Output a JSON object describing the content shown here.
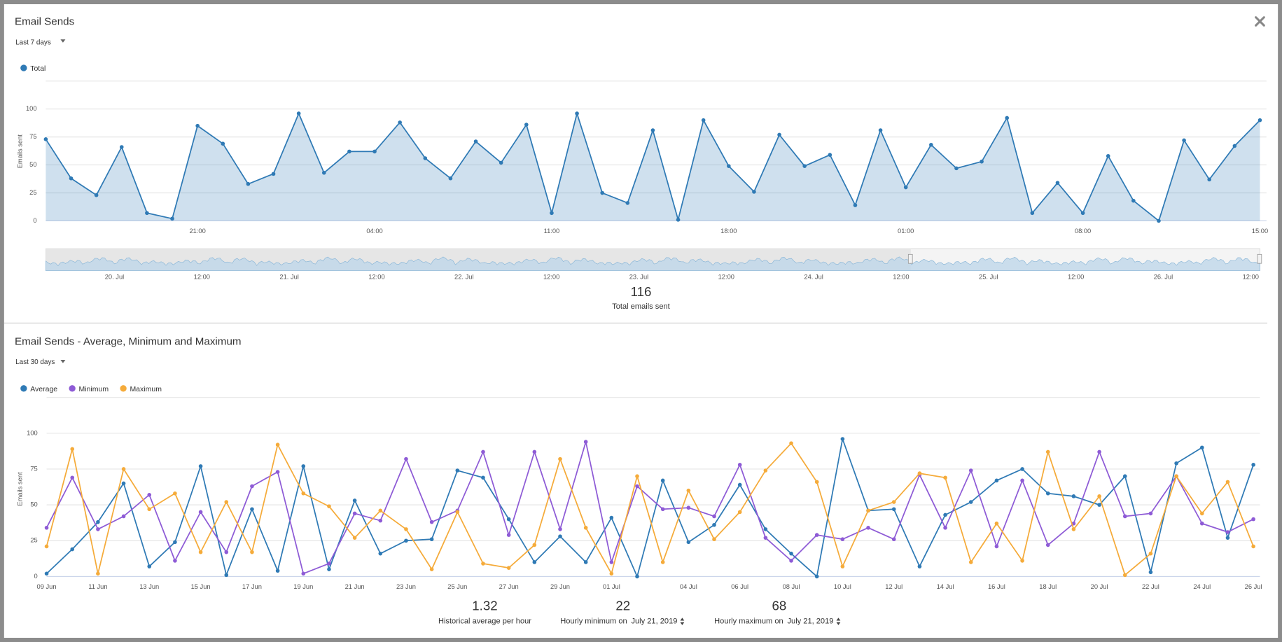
{
  "chart_data": [
    {
      "type": "line",
      "title": "Email Sends",
      "range": "Last 7 days",
      "y_label": "Emails sent",
      "area": true,
      "categories": [
        null,
        null,
        null,
        null,
        null,
        null,
        "21:00",
        null,
        null,
        null,
        null,
        null,
        null,
        "04:00",
        null,
        null,
        null,
        null,
        null,
        null,
        "11:00",
        null,
        null,
        null,
        null,
        null,
        null,
        "18:00",
        null,
        null,
        null,
        null,
        null,
        null,
        "01:00",
        null,
        null,
        null,
        null,
        null,
        null,
        "08:00",
        null,
        null,
        null,
        null,
        null,
        null,
        "15:00"
      ],
      "series": [
        {
          "name": "Total",
          "color": "#2f7ab5",
          "values": [
            73,
            38,
            23,
            66,
            7,
            2,
            85,
            69,
            33,
            42,
            96,
            43,
            62,
            62,
            88,
            56,
            38,
            71,
            52,
            86,
            7,
            96,
            25,
            16,
            81,
            1,
            90,
            49,
            26,
            77,
            49,
            59,
            14,
            81,
            30,
            68,
            47,
            53,
            92,
            7,
            34,
            7,
            58,
            18,
            0,
            72,
            37,
            67,
            90
          ]
        }
      ],
      "ylim": [
        0,
        125
      ],
      "yticks": [
        0,
        25,
        50,
        75,
        100
      ],
      "grid": true,
      "navigator": {
        "labels": [
          "20. Jul",
          "12:00",
          "21. Jul",
          "12:00",
          "22. Jul",
          "12:00",
          "23. Jul",
          "12:00",
          "24. Jul",
          "12:00",
          "25. Jul",
          "12:00",
          "26. Jul",
          "12:00"
        ]
      },
      "summary": [
        {
          "value": 116,
          "label": "Total emails sent"
        }
      ]
    },
    {
      "type": "line",
      "title": "Email Sends - Average, Minimum and Maximum",
      "range": "Last 30 days",
      "y_label": "Emails sent",
      "area": false,
      "categories": [
        "09 Jun",
        null,
        "11 Jun",
        null,
        "13 Jun",
        null,
        "15 Jun",
        null,
        "17 Jun",
        null,
        "19 Jun",
        null,
        "21 Jun",
        null,
        "23 Jun",
        null,
        "25 Jun",
        null,
        "27 Jun",
        null,
        "29 Jun",
        null,
        "01 Jul",
        null,
        null,
        "04 Jul",
        null,
        "06 Jul",
        null,
        "08 Jul",
        null,
        "10 Jul",
        null,
        "12 Jul",
        null,
        "14 Jul",
        null,
        "16 Jul",
        null,
        "18 Jul",
        null,
        "20 Jul",
        null,
        "22 Jul",
        null,
        "24 Jul",
        null,
        "26 Jul"
      ],
      "series": [
        {
          "name": "Average",
          "color": "#2f7ab5",
          "values": [
            2,
            19,
            38,
            65,
            7,
            24,
            77,
            1,
            47,
            4,
            77,
            5,
            53,
            16,
            25,
            26,
            74,
            69,
            40,
            10,
            28,
            10,
            41,
            0,
            67,
            24,
            36,
            64,
            33,
            16,
            0,
            96,
            46,
            47,
            7,
            43,
            52,
            67,
            75,
            58,
            56,
            50,
            70,
            3,
            79,
            90,
            27,
            78
          ]
        },
        {
          "name": "Minimum",
          "color": "#8e5bd6",
          "values": [
            34,
            69,
            33,
            42,
            57,
            11,
            45,
            17,
            63,
            73,
            2,
            9,
            44,
            39,
            82,
            38,
            46,
            87,
            29,
            87,
            33,
            94,
            10,
            63,
            47,
            48,
            42,
            78,
            27,
            11,
            29,
            26,
            34,
            26,
            71,
            34,
            74,
            21,
            67,
            22,
            37,
            87,
            42,
            44,
            70,
            37,
            31,
            40
          ]
        },
        {
          "name": "Maximum",
          "color": "#f5ab3a",
          "values": [
            21,
            89,
            2,
            75,
            47,
            58,
            17,
            52,
            17,
            92,
            58,
            49,
            27,
            46,
            33,
            5,
            45,
            9,
            6,
            22,
            82,
            34,
            2,
            70,
            10,
            60,
            26,
            45,
            74,
            93,
            66,
            7,
            46,
            52,
            72,
            69,
            10,
            37,
            11,
            87,
            33,
            56,
            1,
            16,
            70,
            44,
            66,
            21
          ]
        }
      ],
      "ylim": [
        0,
        125
      ],
      "yticks": [
        0,
        25,
        50,
        75,
        100
      ],
      "grid": true,
      "summary": [
        {
          "value": 1.32,
          "label": "Historical average per hour"
        },
        {
          "value": 22,
          "label": "Hourly minimum on",
          "date": "July 21, 2019"
        },
        {
          "value": 68,
          "label": "Hourly maximum on",
          "date": "July 21, 2019"
        }
      ]
    }
  ]
}
